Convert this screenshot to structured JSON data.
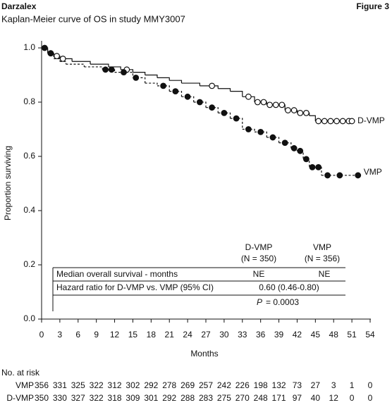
{
  "chart_data": {
    "type": "km",
    "title": "Darzalex",
    "figure_label": "Figure 3",
    "subtitle": "Kaplan-Meier curve of OS in study MMY3007",
    "x_label": "Months",
    "y_label": "Proportion surviving",
    "xlim": [
      0,
      54
    ],
    "ylim": [
      0,
      1
    ],
    "xticks": [
      0,
      3,
      6,
      9,
      12,
      15,
      18,
      21,
      24,
      27,
      30,
      33,
      36,
      39,
      42,
      45,
      48,
      51,
      54
    ],
    "yticks": [
      {
        "value": 0,
        "label": "0.0"
      },
      0.2,
      0.4,
      0.6,
      0.8,
      {
        "value": 1,
        "label": "1.0"
      }
    ],
    "series": [
      {
        "name": "D-VMP",
        "color": "#111111",
        "dashed": false,
        "censor_fill": "#ffffff",
        "x": [
          0,
          1,
          2,
          3,
          5,
          8,
          11,
          13,
          15,
          17,
          19,
          21,
          23,
          26,
          29,
          31,
          33,
          35,
          37,
          40,
          42,
          44,
          45,
          51
        ],
        "values": [
          1.0,
          0.98,
          0.97,
          0.96,
          0.95,
          0.94,
          0.93,
          0.92,
          0.91,
          0.9,
          0.89,
          0.88,
          0.87,
          0.86,
          0.85,
          0.84,
          0.82,
          0.8,
          0.79,
          0.77,
          0.76,
          0.75,
          0.73,
          0.73
        ],
        "censored": {
          "x": [
            1.5,
            2.5,
            3.5,
            14,
            28,
            34,
            35.5,
            36.5,
            37.5,
            38.5,
            39.5,
            40.5,
            41.5,
            42.5,
            43.5,
            45.5,
            46.5,
            47.5,
            48.5,
            49.5,
            50.5,
            51
          ],
          "values": [
            0.98,
            0.97,
            0.96,
            0.92,
            0.86,
            0.82,
            0.8,
            0.8,
            0.79,
            0.79,
            0.79,
            0.77,
            0.77,
            0.76,
            0.76,
            0.73,
            0.73,
            0.73,
            0.73,
            0.73,
            0.73,
            0.73
          ]
        }
      },
      {
        "name": "VMP",
        "color": "#111111",
        "dashed": true,
        "censor_fill": "#111111",
        "x": [
          0,
          1,
          2,
          3,
          4,
          7,
          10,
          12,
          15,
          17,
          19,
          21,
          23,
          25,
          27,
          29,
          31,
          33,
          35,
          37,
          39,
          41,
          42,
          43,
          44,
          46,
          52
        ],
        "values": [
          1.0,
          0.98,
          0.96,
          0.95,
          0.94,
          0.93,
          0.92,
          0.91,
          0.89,
          0.87,
          0.86,
          0.84,
          0.82,
          0.8,
          0.78,
          0.76,
          0.74,
          0.7,
          0.69,
          0.67,
          0.65,
          0.63,
          0.62,
          0.59,
          0.56,
          0.53,
          0.53
        ],
        "censored": {
          "x": [
            0.5,
            1.5,
            10.5,
            11.5,
            13.5,
            15.5,
            20,
            22,
            24,
            26,
            28,
            30,
            32,
            34,
            36,
            38,
            40,
            41.5,
            42.5,
            43.5,
            44.5,
            45.5,
            47,
            49,
            52
          ],
          "values": [
            1.0,
            0.98,
            0.92,
            0.92,
            0.91,
            0.89,
            0.86,
            0.84,
            0.82,
            0.8,
            0.78,
            0.76,
            0.74,
            0.7,
            0.69,
            0.67,
            0.65,
            0.63,
            0.62,
            0.59,
            0.56,
            0.56,
            0.53,
            0.53,
            0.53
          ]
        }
      }
    ],
    "summary_table": {
      "columns": [
        [
          "D-VMP",
          "(N = 350)"
        ],
        [
          "VMP",
          "(N = 356)"
        ]
      ],
      "median_label": "Median overall survival - months",
      "median_values": [
        "NE",
        "NE"
      ],
      "hr_label": "Hazard ratio for D-VMP vs. VMP (95% CI)",
      "hr_value": "0.60 (0.46-0.80)",
      "p_symbol": "P",
      "p_value": "= 0.0003"
    },
    "at_risk": {
      "title": "No. at risk",
      "rows": [
        {
          "name": "VMP",
          "counts": [
            356,
            331,
            325,
            322,
            312,
            302,
            292,
            278,
            269,
            257,
            242,
            226,
            198,
            132,
            73,
            27,
            3,
            1,
            0
          ]
        },
        {
          "name": "D-VMP",
          "counts": [
            350,
            330,
            327,
            322,
            318,
            309,
            301,
            292,
            288,
            283,
            275,
            270,
            248,
            171,
            97,
            40,
            12,
            0,
            0
          ]
        }
      ]
    }
  }
}
